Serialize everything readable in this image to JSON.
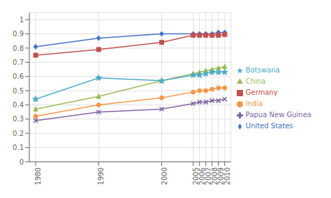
{
  "chart_data": {
    "type": "line",
    "x": [
      1980,
      1990,
      2000,
      2005,
      2006,
      2007,
      2008,
      2009,
      2010
    ],
    "series": [
      {
        "name": "United States",
        "color": "#4472C4",
        "marker": "diamond",
        "values": [
          0.81,
          0.87,
          0.9,
          0.9,
          0.9,
          0.9,
          0.9,
          0.91,
          0.91
        ]
      },
      {
        "name": "Germany",
        "color": "#C0504D",
        "marker": "square",
        "values": [
          0.75,
          0.79,
          0.84,
          0.89,
          0.89,
          0.89,
          0.89,
          0.89,
          0.895
        ]
      },
      {
        "name": "China",
        "color": "#9BBB59",
        "marker": "triangle",
        "values": [
          0.37,
          0.46,
          0.57,
          0.62,
          0.63,
          0.64,
          0.65,
          0.66,
          0.67
        ]
      },
      {
        "name": "Papua New Guinea",
        "color": "#8064A2",
        "marker": "x",
        "values": [
          0.29,
          0.35,
          0.37,
          0.41,
          0.42,
          0.42,
          0.43,
          0.43,
          0.44
        ]
      },
      {
        "name": "Botswana",
        "color": "#4BACC6",
        "marker": "star",
        "values": [
          0.44,
          0.59,
          0.57,
          0.61,
          0.61,
          0.62,
          0.63,
          0.63,
          0.63
        ]
      },
      {
        "name": "India",
        "color": "#F79646",
        "marker": "circle",
        "values": [
          0.32,
          0.4,
          0.45,
          0.49,
          0.5,
          0.5,
          0.51,
          0.52,
          0.52
        ]
      }
    ],
    "xlim": [
      1979,
      2011
    ],
    "xticks": [
      1980,
      1990,
      2000,
      2005,
      2006,
      2007,
      2008,
      2009,
      2010
    ],
    "ylim": [
      0,
      1.05
    ],
    "yticks": [
      0,
      0.1,
      0.2,
      0.3,
      0.4,
      0.5,
      0.6,
      0.7,
      0.8,
      0.9,
      1
    ],
    "grid": true,
    "legend": "right"
  }
}
